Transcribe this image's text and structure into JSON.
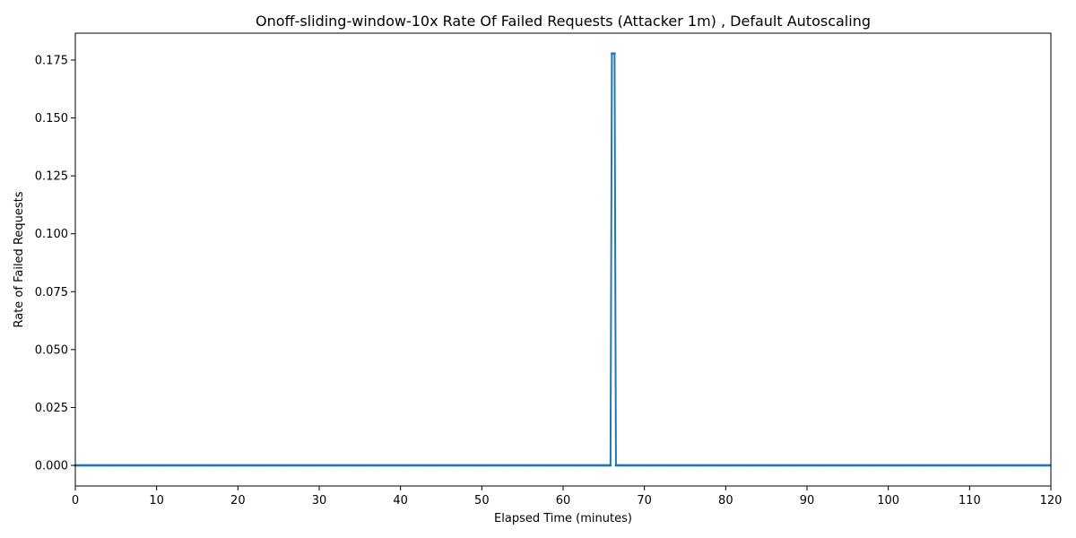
{
  "chart_data": {
    "type": "line",
    "title": "Onoff-sliding-window-10x Rate Of Failed Requests (Attacker 1m) , Default Autoscaling",
    "xlabel": "Elapsed Time (minutes)",
    "ylabel": "Rate of Failed Requests",
    "xlim": [
      0,
      120
    ],
    "ylim": [
      -0.0089,
      0.1866
    ],
    "xticks": [
      0,
      10,
      20,
      30,
      40,
      50,
      60,
      70,
      80,
      90,
      100,
      110,
      120
    ],
    "xtick_labels": [
      "0",
      "10",
      "20",
      "30",
      "40",
      "50",
      "60",
      "70",
      "80",
      "90",
      "100",
      "110",
      "120"
    ],
    "yticks": [
      0,
      0.025,
      0.05,
      0.075,
      0.1,
      0.125,
      0.15,
      0.175
    ],
    "ytick_labels": [
      "0.000",
      "0.025",
      "0.050",
      "0.075",
      "0.100",
      "0.125",
      "0.150",
      "0.175"
    ],
    "grid": false,
    "legend": "none",
    "series": [
      {
        "color": "#1f77b4",
        "marker_interval_minutes": 0.1667,
        "x_range": [
          0,
          120
        ],
        "baseline_value": 0.0,
        "spike": {
          "x": [
            65.83,
            66.0,
            66.17,
            66.33,
            66.5
          ],
          "values": [
            0.0,
            0.1778,
            0.1778,
            0.1778,
            0.0
          ]
        }
      }
    ]
  }
}
